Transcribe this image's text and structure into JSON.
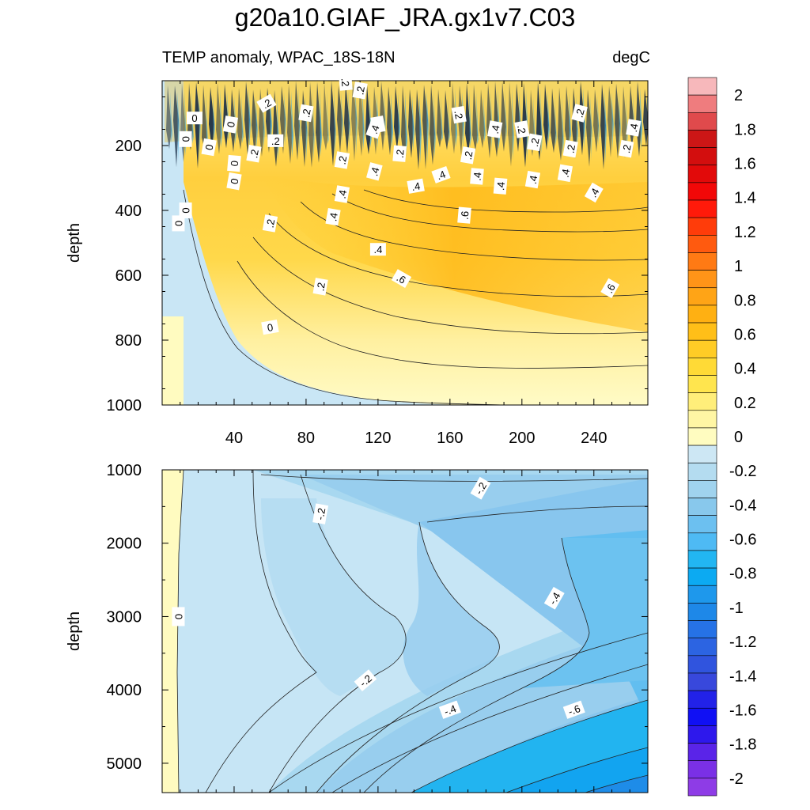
{
  "chart_data": {
    "type": "heatmap",
    "title": "g20a10.GIAF_JRA.gx1v7.C03",
    "subtitle_left": "TEMP anomaly, WPAC_18S-18N",
    "subtitle_right": "degC",
    "colorbar": {
      "labels": [
        "2",
        "1.8",
        "1.6",
        "1.4",
        "1.2",
        "1",
        "0.8",
        "0.6",
        "0.4",
        "0.2",
        "0",
        "-0.2",
        "-0.4",
        "-0.6",
        "-0.8",
        "-1",
        "-1.2",
        "-1.4",
        "-1.6",
        "-1.8",
        "-2"
      ],
      "colors": [
        "#F7B8BB",
        "#EF7C7E",
        "#E04A4C",
        "#CC1616",
        "#D30E0E",
        "#E20A0A",
        "#F20808",
        "#FF1A0A",
        "#FF3C0A",
        "#FF5A0F",
        "#FF7A14",
        "#FF9418",
        "#FFA416",
        "#FFB012",
        "#FFBF18",
        "#FFCC26",
        "#FFDA36",
        "#FFE54E",
        "#FFEE7A",
        "#FFF6A4",
        "#FFFCC0",
        "#CDE7F4",
        "#B4DCF0",
        "#A0D3EE",
        "#88C8EC",
        "#6CC0F0",
        "#4EBAF4",
        "#22B6F2",
        "#0CAAF2",
        "#1E98EC",
        "#1E88E8",
        "#2672E6",
        "#2C64E2",
        "#3054DE",
        "#3848DC",
        "#2222E8",
        "#1010F4",
        "#2E18EC",
        "#5A24E8",
        "#7A30E6",
        "#8E3CE6"
      ]
    },
    "panels": [
      {
        "name": "upper",
        "xlabel": "",
        "ylabel": "depth",
        "xlim": [
          0,
          270
        ],
        "ylim": [
          1000,
          0
        ],
        "xticks": [
          "40",
          "80",
          "120",
          "160",
          "200",
          "240"
        ],
        "yticks": [
          "200",
          "400",
          "600",
          "800",
          "1000"
        ],
        "contour_labels": [
          "0",
          "0",
          "0",
          "0",
          "0",
          "0",
          "0",
          "0",
          "0",
          ".2",
          ".2",
          ".2",
          ".2",
          ".2",
          ".2",
          ".2",
          ".2",
          ".2",
          ".2",
          ".2",
          ".2",
          ".2",
          ".2",
          ".2",
          ".2",
          ".2",
          ".2",
          ".4",
          ".4",
          ".4",
          ".4",
          ".4",
          ".4",
          ".4",
          ".4",
          ".4",
          ".4",
          ".4",
          ".4",
          ".4",
          ".4",
          ".6",
          ".6",
          ".6"
        ]
      },
      {
        "name": "lower",
        "xlabel": "",
        "ylabel": "depth",
        "xlim": [
          0,
          270
        ],
        "ylim": [
          5400,
          1000
        ],
        "yticks": [
          "1000",
          "2000",
          "3000",
          "4000",
          "5000"
        ],
        "contour_labels": [
          "0",
          "-.2",
          "-.2",
          "-.2",
          "-.4",
          "-.4",
          "-.6"
        ]
      }
    ]
  }
}
